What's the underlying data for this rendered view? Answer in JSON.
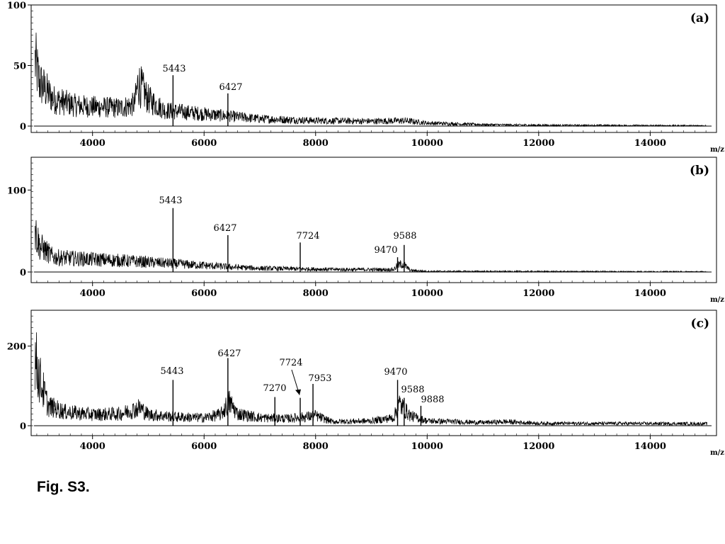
{
  "figure_caption": "Fig. S3.",
  "chart_data": [
    {
      "type": "line",
      "panel_label": "(a)",
      "xlabel": "m/z",
      "xlim": [
        2950,
        15100
      ],
      "ylim": [
        0,
        100
      ],
      "x_ticks": [
        4000,
        6000,
        8000,
        10000,
        12000,
        14000
      ],
      "y_ticks": [
        0,
        50,
        100
      ],
      "baseline_profile": [
        [
          2950,
          58
        ],
        [
          3050,
          36
        ],
        [
          3300,
          22
        ],
        [
          3700,
          17
        ],
        [
          4000,
          16
        ],
        [
          4500,
          15
        ],
        [
          4750,
          18
        ],
        [
          4820,
          36
        ],
        [
          5000,
          22
        ],
        [
          5300,
          13
        ],
        [
          6000,
          10
        ],
        [
          6500,
          8
        ],
        [
          7000,
          6
        ],
        [
          8000,
          4.5
        ],
        [
          9000,
          4
        ],
        [
          9600,
          4.5
        ],
        [
          10000,
          2.5
        ],
        [
          11000,
          1.2
        ],
        [
          12000,
          0.7
        ],
        [
          15100,
          0.3
        ]
      ],
      "peaks": [
        {
          "mz": 5443,
          "intensity": 42,
          "label": "5443"
        },
        {
          "mz": 6427,
          "intensity": 27,
          "label": "6427"
        }
      ]
    },
    {
      "type": "line",
      "panel_label": "(b)",
      "xlabel": "m/z",
      "xlim": [
        2950,
        15100
      ],
      "ylim": [
        0,
        140
      ],
      "x_ticks": [
        4000,
        6000,
        8000,
        10000,
        12000,
        14000
      ],
      "y_ticks": [
        0,
        100
      ],
      "baseline_profile": [
        [
          2950,
          55
        ],
        [
          3050,
          32
        ],
        [
          3300,
          18
        ],
        [
          3800,
          16
        ],
        [
          4500,
          14
        ],
        [
          5000,
          12
        ],
        [
          6000,
          8
        ],
        [
          6500,
          6
        ],
        [
          7000,
          4.5
        ],
        [
          8000,
          3.5
        ],
        [
          8500,
          3
        ],
        [
          9400,
          3
        ],
        [
          9470,
          8
        ],
        [
          9560,
          10
        ],
        [
          9700,
          2
        ],
        [
          10000,
          0.8
        ],
        [
          15100,
          0.3
        ]
      ],
      "peaks": [
        {
          "mz": 5443,
          "intensity": 78,
          "label": "5443"
        },
        {
          "mz": 6427,
          "intensity": 45,
          "label": "6427"
        },
        {
          "mz": 7724,
          "intensity": 36,
          "label": "7724"
        },
        {
          "mz": 9470,
          "intensity": 18,
          "label": "9470"
        },
        {
          "mz": 9588,
          "intensity": 33,
          "label": "9588"
        }
      ]
    },
    {
      "type": "line",
      "panel_label": "(c)",
      "xlabel": "m/z",
      "xlim": [
        2950,
        15100
      ],
      "ylim": [
        0,
        290
      ],
      "x_ticks": [
        4000,
        6000,
        8000,
        10000,
        12000,
        14000
      ],
      "y_ticks": [
        0,
        200
      ],
      "baseline_profile": [
        [
          2950,
          180
        ],
        [
          3050,
          120
        ],
        [
          3200,
          50
        ],
        [
          3500,
          35
        ],
        [
          4000,
          28
        ],
        [
          4500,
          30
        ],
        [
          4850,
          45
        ],
        [
          5000,
          28
        ],
        [
          5500,
          22
        ],
        [
          6000,
          20
        ],
        [
          6300,
          28
        ],
        [
          6450,
          60
        ],
        [
          6600,
          30
        ],
        [
          7000,
          20
        ],
        [
          7500,
          18
        ],
        [
          7800,
          22
        ],
        [
          8000,
          25
        ],
        [
          8300,
          10
        ],
        [
          9000,
          12
        ],
        [
          9400,
          20
        ],
        [
          9500,
          55
        ],
        [
          9700,
          25
        ],
        [
          10000,
          12
        ],
        [
          11000,
          8
        ],
        [
          11400,
          10
        ],
        [
          12000,
          6
        ],
        [
          15100,
          5
        ]
      ],
      "peaks": [
        {
          "mz": 5443,
          "intensity": 115,
          "label": "5443"
        },
        {
          "mz": 6427,
          "intensity": 170,
          "label": "6427"
        },
        {
          "mz": 7270,
          "intensity": 72,
          "label": "7270"
        },
        {
          "mz": 7724,
          "intensity": 70,
          "label": "7724"
        },
        {
          "mz": 7953,
          "intensity": 105,
          "label": "7953"
        },
        {
          "mz": 9470,
          "intensity": 115,
          "label": "9470"
        },
        {
          "mz": 9588,
          "intensity": 70,
          "label": "9588"
        },
        {
          "mz": 9888,
          "intensity": 50,
          "label": "9888"
        }
      ]
    }
  ]
}
